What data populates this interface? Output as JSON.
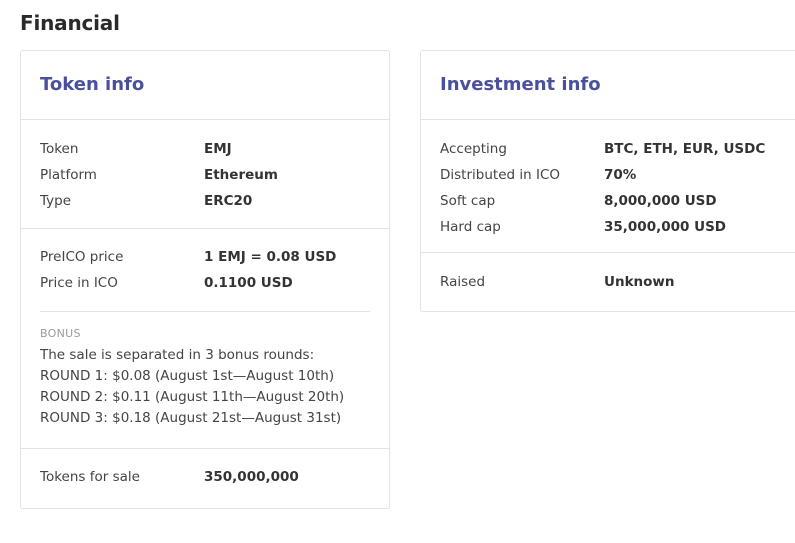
{
  "section_title": "Financial",
  "token_info": {
    "title": "Token info",
    "basic": [
      {
        "label": "Token",
        "value": "EMJ"
      },
      {
        "label": "Platform",
        "value": "Ethereum"
      },
      {
        "label": "Type",
        "value": "ERC20"
      }
    ],
    "prices": [
      {
        "label": "PreICO price",
        "value": "1 EMJ = 0.08 USD"
      },
      {
        "label": "Price in ICO",
        "value": "0.1100 USD"
      }
    ],
    "bonus": {
      "label": "BONUS",
      "lines": [
        "The sale is separated in 3 bonus rounds:",
        "ROUND 1: $0.08 (August 1st—August 10th)",
        "ROUND 2: $0.11 (August 11th—August 20th)",
        "ROUND 3: $0.18 (August 21st—August 31st)"
      ]
    },
    "tokens_for_sale": {
      "label": "Tokens for sale",
      "value": "350,000,000"
    }
  },
  "investment_info": {
    "title": "Investment info",
    "details": [
      {
        "label": "Accepting",
        "value": "BTC, ETH, EUR, USDC"
      },
      {
        "label": "Distributed in ICO",
        "value": "70%"
      },
      {
        "label": "Soft cap",
        "value": "8,000,000 USD"
      },
      {
        "label": "Hard cap",
        "value": "35,000,000 USD"
      }
    ],
    "raised": {
      "label": "Raised",
      "value": "Unknown"
    }
  },
  "colors": {
    "card_title": "#4a4f9e",
    "border": "#e3e3e3",
    "bonus_label": "#9a9a9a"
  }
}
